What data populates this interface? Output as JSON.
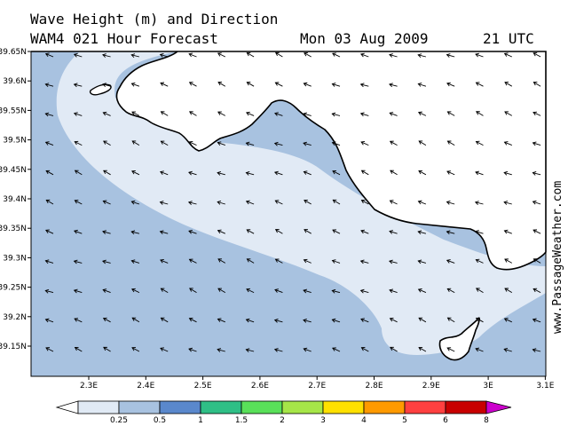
{
  "header": {
    "title": "Wave Height (m) and Direction",
    "model": "WAM4 021 Hour Forecast",
    "date": "Mon 03 Aug 2009",
    "time": "21 UTC"
  },
  "credit": "www.PassageWeather.com",
  "axes": {
    "lat_labels": [
      "39.65N",
      "39.6N",
      "39.55N",
      "39.5N",
      "39.45N",
      "39.4N",
      "39.35N",
      "39.3N",
      "39.25N",
      "39.2N",
      "39.15N"
    ],
    "lon_labels": [
      "2.3E",
      "2.4E",
      "2.5E",
      "2.6E",
      "2.7E",
      "2.8E",
      "2.9E",
      "3E",
      "3.1E"
    ]
  },
  "legend": {
    "labels": [
      "0.25",
      "0.5",
      "1",
      "1.5",
      "2",
      "3",
      "4",
      "5",
      "6",
      "8"
    ],
    "colors": [
      "#ffffff",
      "#e1eaf5",
      "#a8c2e0",
      "#5a88cc",
      "#2fbf86",
      "#59e059",
      "#a6e648",
      "#ffe100",
      "#ff9a00",
      "#ff4040",
      "#c80000",
      "#cc00cc"
    ]
  },
  "colors": {
    "land": "#ffffff",
    "sea_light": "#e1eaf5",
    "sea_mid": "#a8c2e0",
    "coast": "#000000"
  },
  "arrow_icon": "wave-direction-arrow-icon"
}
